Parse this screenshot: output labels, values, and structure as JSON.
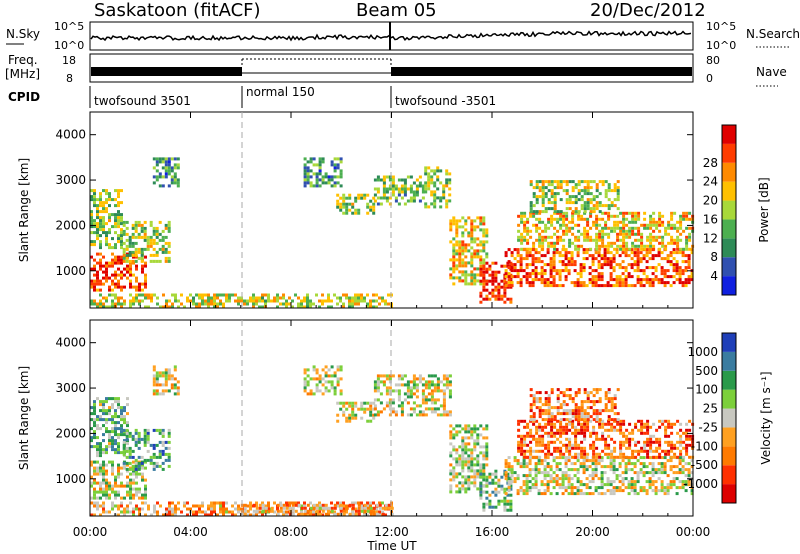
{
  "header": {
    "station": "Saskatoon (fitACF)",
    "beam": "Beam 05",
    "date": "20/Dec/2012"
  },
  "noise_panel": {
    "left_label": "N.Sky",
    "left_ticks": [
      "10^5",
      "10^0"
    ],
    "right_ticks": [
      "10^5",
      "10^0"
    ],
    "right_label": "N.Search"
  },
  "freq_panel": {
    "left_label_line1": "Freq.",
    "left_label_line2": "[MHz]",
    "left_ticks": [
      "18",
      "8"
    ],
    "right_ticks": [
      "80",
      "0"
    ],
    "right_label": "Nave"
  },
  "cpid": {
    "label": "CPID",
    "segments": [
      {
        "name": "twofsound 3501",
        "start_h": 0,
        "end_h": 6
      },
      {
        "name": "normal 150",
        "start_h": 6,
        "end_h": 12
      },
      {
        "name": "twofsound -3501",
        "start_h": 12,
        "end_h": 24
      }
    ]
  },
  "x_axis": {
    "label": "Time UT",
    "ticks": [
      "00:00",
      "04:00",
      "08:00",
      "12:00",
      "16:00",
      "20:00",
      "00:00"
    ],
    "range_h": [
      0,
      24
    ]
  },
  "power_panel": {
    "ylabel": "Slant Range [km]",
    "yticks": [
      "1000",
      "2000",
      "3000",
      "4000"
    ],
    "colorbar_label": "Power [dB]",
    "colorbar_ticks": [
      "4",
      "8",
      "12",
      "16",
      "20",
      "24",
      "28"
    ]
  },
  "velocity_panel": {
    "ylabel": "Slant Range [km]",
    "yticks": [
      "1000",
      "2000",
      "3000",
      "4000"
    ],
    "colorbar_label": "Velocity [m s⁻¹]",
    "colorbar_ticks": [
      "1000",
      "500",
      "100",
      "25",
      "-25",
      "-100",
      "-500",
      "-1000"
    ]
  },
  "chart_data": {
    "type": "heatmap",
    "x_range": [
      0,
      24
    ],
    "y_range": [
      180,
      4500
    ],
    "power_colors": [
      "#1020e0",
      "#3050b0",
      "#2e8b57",
      "#4caf50",
      "#a8d83a",
      "#ffc000",
      "#ff8a00",
      "#ff3c00",
      "#e00000"
    ],
    "velocity_colors": [
      "#1f3fb8",
      "#3a7ca0",
      "#2a9a4a",
      "#7ccf3a",
      "#c8c8c0",
      "#ffa020",
      "#ff7a00",
      "#ff3000",
      "#dd0000"
    ],
    "power_regions": [
      {
        "t0": 0,
        "t1": 2.2,
        "r0": 550,
        "r1": 1400,
        "level": 0.85
      },
      {
        "t0": 0,
        "t1": 1.2,
        "r0": 1500,
        "r1": 2800,
        "level": 0.45
      },
      {
        "t0": 1.3,
        "t1": 3.1,
        "r0": 1200,
        "r1": 2100,
        "level": 0.5
      },
      {
        "t0": 2.5,
        "t1": 3.5,
        "r0": 2900,
        "r1": 3500,
        "level": 0.3
      },
      {
        "t0": 0,
        "t1": 12,
        "r0": 200,
        "r1": 500,
        "level": 0.55
      },
      {
        "t0": 8.5,
        "t1": 10,
        "r0": 2900,
        "r1": 3500,
        "level": 0.3
      },
      {
        "t0": 9.8,
        "t1": 11.3,
        "r0": 2300,
        "r1": 2700,
        "level": 0.45
      },
      {
        "t0": 11.3,
        "t1": 13.3,
        "r0": 2500,
        "r1": 3100,
        "level": 0.4
      },
      {
        "t0": 13.3,
        "t1": 14.3,
        "r0": 2400,
        "r1": 3300,
        "level": 0.45
      },
      {
        "t0": 14.3,
        "t1": 15.8,
        "r0": 700,
        "r1": 2200,
        "level": 0.6
      },
      {
        "t0": 15.5,
        "t1": 16.8,
        "r0": 300,
        "r1": 1200,
        "level": 0.9
      },
      {
        "t0": 16.5,
        "t1": 24,
        "r0": 700,
        "r1": 1500,
        "level": 0.8
      },
      {
        "t0": 17,
        "t1": 24,
        "r0": 1500,
        "r1": 2300,
        "level": 0.6
      },
      {
        "t0": 17.5,
        "t1": 21,
        "r0": 2300,
        "r1": 3000,
        "level": 0.5
      }
    ],
    "velocity_regions": [
      {
        "t0": 0,
        "t1": 2.2,
        "r0": 550,
        "r1": 1400,
        "level": 0.5
      },
      {
        "t0": 0,
        "t1": 1.5,
        "r0": 1500,
        "r1": 2800,
        "level": 0.35
      },
      {
        "t0": 1.3,
        "t1": 3.1,
        "r0": 1200,
        "r1": 2100,
        "level": 0.3
      },
      {
        "t0": 2.5,
        "t1": 3.5,
        "r0": 2900,
        "r1": 3500,
        "level": 0.5
      },
      {
        "t0": 0,
        "t1": 12,
        "r0": 200,
        "r1": 500,
        "level": 0.65
      },
      {
        "t0": 6,
        "t1": 12,
        "r0": 200,
        "r1": 450,
        "level": 0.65
      },
      {
        "t0": 8.5,
        "t1": 10,
        "r0": 2900,
        "r1": 3500,
        "level": 0.5
      },
      {
        "t0": 9.8,
        "t1": 11.3,
        "r0": 2300,
        "r1": 2700,
        "level": 0.5
      },
      {
        "t0": 11.3,
        "t1": 14.3,
        "r0": 2400,
        "r1": 3300,
        "level": 0.5
      },
      {
        "t0": 14.3,
        "t1": 15.8,
        "r0": 700,
        "r1": 2200,
        "level": 0.45
      },
      {
        "t0": 15.5,
        "t1": 16.8,
        "r0": 300,
        "r1": 1200,
        "level": 0.35
      },
      {
        "t0": 16.5,
        "t1": 24,
        "r0": 700,
        "r1": 1500,
        "level": 0.5
      },
      {
        "t0": 17,
        "t1": 24,
        "r0": 1500,
        "r1": 2300,
        "level": 0.75
      },
      {
        "t0": 17.5,
        "t1": 21,
        "r0": 2300,
        "r1": 3000,
        "level": 0.7
      }
    ]
  }
}
